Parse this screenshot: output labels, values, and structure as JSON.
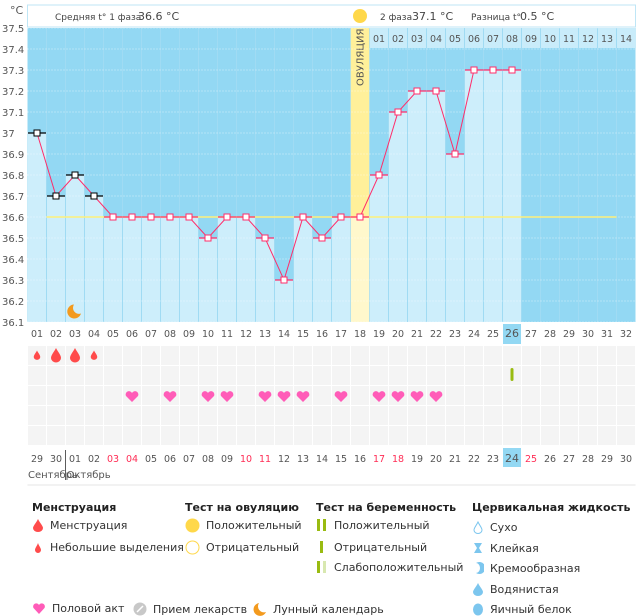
{
  "chart_data": {
    "type": "line",
    "ylabel": "°C",
    "ylim": [
      36.1,
      37.5
    ],
    "yticks": [
      "37.5",
      "37.4",
      "37.3",
      "37.2",
      "37.1",
      "37",
      "36.9",
      "36.8",
      "36.7",
      "36.6",
      "36.5",
      "36.4",
      "36.3",
      "36.2",
      "36.1"
    ],
    "cycle_days": [
      "01",
      "02",
      "03",
      "04",
      "05",
      "06",
      "07",
      "08",
      "09",
      "10",
      "11",
      "12",
      "13",
      "14",
      "15",
      "16",
      "17",
      "18",
      "19",
      "20",
      "21",
      "22",
      "23",
      "24",
      "25",
      "26",
      "27",
      "28",
      "29",
      "30",
      "31",
      "32"
    ],
    "temperatures": [
      37.0,
      36.7,
      36.8,
      36.7,
      36.6,
      36.6,
      36.6,
      36.6,
      36.6,
      36.5,
      36.6,
      36.6,
      36.5,
      36.3,
      36.6,
      36.5,
      36.6,
      36.6,
      36.8,
      37.1,
      37.2,
      37.2,
      36.9,
      37.3,
      37.3,
      37.3
    ],
    "menstruation_marker_days": [
      1,
      2,
      3,
      4
    ],
    "coverline": 36.6,
    "ovulation_day": 18,
    "ovulation_label": "ОВУЛЯЦИЯ",
    "current_day": 26,
    "phase2_days": [
      "01",
      "02",
      "03",
      "04",
      "05",
      "06",
      "07",
      "08",
      "09",
      "10",
      "11",
      "12",
      "13",
      "14"
    ],
    "dates": [
      "29",
      "30",
      "01",
      "02",
      "03",
      "04",
      "05",
      "06",
      "07",
      "08",
      "09",
      "10",
      "11",
      "12",
      "13",
      "14",
      "15",
      "16",
      "17",
      "18",
      "19",
      "20",
      "21",
      "22",
      "23",
      "24",
      "25",
      "26",
      "27",
      "28",
      "29",
      "30"
    ],
    "weekend_dates_cols": [
      5,
      6,
      12,
      13,
      19,
      20,
      27
    ],
    "months": [
      "Сентябрь",
      "Октябрь"
    ],
    "menstruation": {
      "1": "light",
      "2": "heavy",
      "3": "heavy",
      "4": "light"
    },
    "pregnancy_test": {
      "26": "negative"
    },
    "intercourse_days": [
      6,
      8,
      10,
      11,
      13,
      14,
      15,
      17,
      19,
      20,
      21,
      22
    ],
    "moon_day": 3,
    "colors": {
      "bg": "#93d8f3",
      "bar": "#cdeefb",
      "line": "#ff2d6a",
      "coverline": "#fff07a",
      "ovulation": "#fff09a",
      "drop": "#ff4b4b",
      "heart": "#ff5cb8",
      "test": "#99bb11",
      "weekend": "#ff2d55"
    }
  },
  "header": {
    "phase1_label": "Средняя t° 1 фаза",
    "phase1_value": "36.6 °C",
    "phase2_label": "2 фаза",
    "phase2_value": "37.1 °C",
    "diff_label": "Разница t°",
    "diff_value": "0.5 °C"
  },
  "legend": {
    "menstruation": {
      "title": "Менструация",
      "items": [
        "Менструация",
        "Небольшие выделения"
      ]
    },
    "ovulation_test": {
      "title": "Тест на овуляцию",
      "items": [
        "Положительный",
        "Отрицательный"
      ]
    },
    "pregnancy_test": {
      "title": "Тест на беременность",
      "items": [
        "Положительный",
        "Отрицательный",
        "Слабоположительный"
      ]
    },
    "cervical": {
      "title": "Цервикальная жидкость",
      "items": [
        "Сухо",
        "Клейкая",
        "Кремообразная",
        "Водянистая",
        "Яичный белок"
      ]
    },
    "bottom": [
      "Половой акт",
      "Прием лекарств",
      "Лунный календарь"
    ]
  }
}
